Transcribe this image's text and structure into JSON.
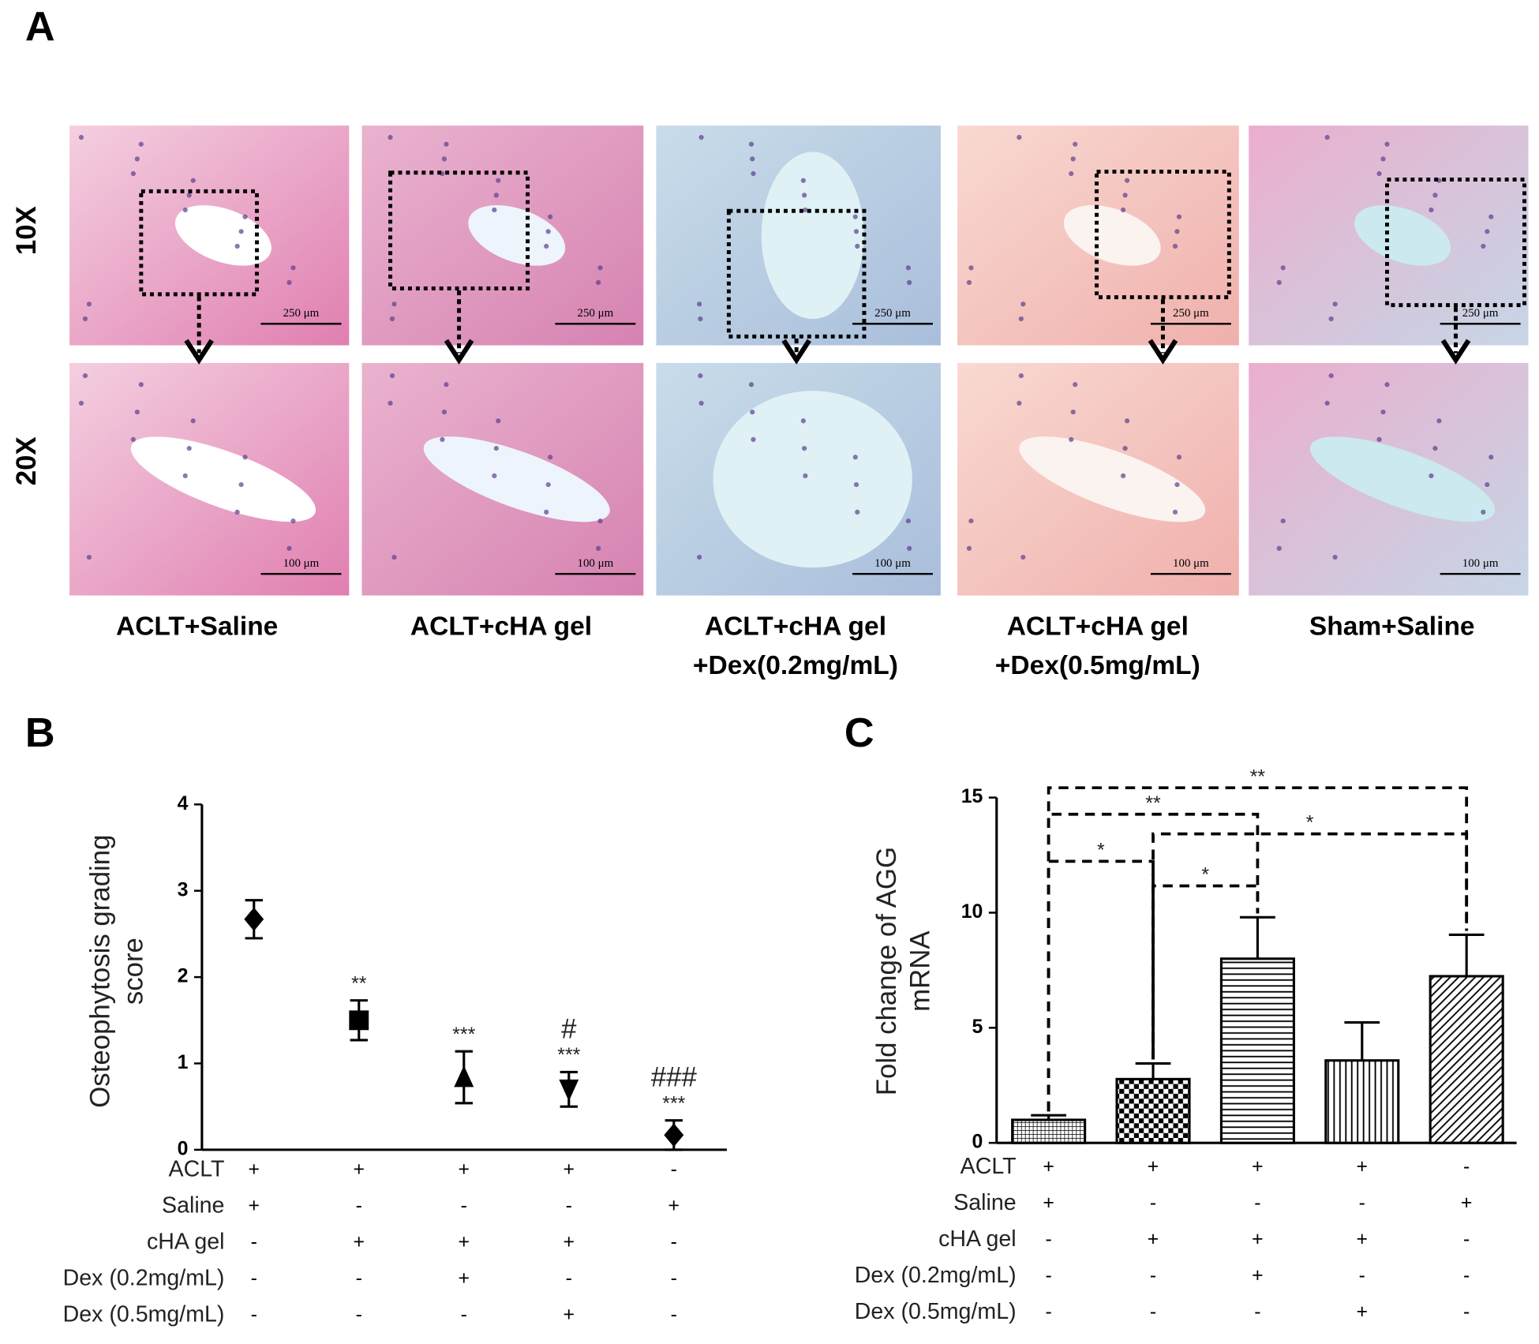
{
  "figure": {
    "panels": [
      "A",
      "B",
      "C"
    ],
    "magnifications": [
      "10X",
      "20X"
    ],
    "scale_bars": [
      "250 μm",
      "100 μm"
    ],
    "groups": [
      [
        "ACLT+Saline"
      ],
      [
        "ACLT+cHA  gel"
      ],
      [
        "ACLT+cHA  gel",
        "+Dex(0.2mg/mL)"
      ],
      [
        "ACLT+cHA  gel",
        "+Dex(0.5mg/mL)"
      ],
      [
        "Sham+Saline"
      ]
    ]
  },
  "chart_data": [
    {
      "type": "errorbar",
      "y_label": [
        "Osteophytosis  grading",
        "score"
      ],
      "categories": [
        null,
        null,
        null,
        null,
        null
      ],
      "values": [
        2.67,
        1.5,
        0.84,
        0.7,
        0.17
      ],
      "errors": [
        0.22,
        0.23,
        0.3,
        0.2,
        0.17
      ],
      "markers": [
        "diamond",
        "square",
        "triangle-up",
        "triangle-down",
        "diamond"
      ],
      "annotations": [
        null,
        [
          "**"
        ],
        [
          "***"
        ],
        [
          "#",
          "***"
        ],
        [
          "###",
          "***"
        ]
      ],
      "color": "#000000",
      "ylim": [
        0,
        4
      ],
      "yticks": [
        0,
        1,
        2,
        3,
        4
      ],
      "conditions": [
        {
          "label": "ACLT",
          "marks": [
            "+",
            "+",
            "+",
            "+",
            "-"
          ]
        },
        {
          "label": "Saline",
          "marks": [
            "+",
            "-",
            "-",
            "-",
            "+"
          ]
        },
        {
          "label": "cHA gel",
          "marks": [
            "-",
            "+",
            "+",
            "+",
            "-"
          ]
        },
        {
          "label": "Dex (0.2mg/mL)",
          "marks": [
            "-",
            "-",
            "+",
            "-",
            "-"
          ]
        },
        {
          "label": "Dex (0.5mg/mL)",
          "marks": [
            "-",
            "-",
            "-",
            "+",
            "-"
          ]
        }
      ]
    },
    {
      "type": "bar",
      "y_label": [
        "Fold change of AGG",
        "mRNA"
      ],
      "categories": [
        null,
        null,
        null,
        null,
        null
      ],
      "values": [
        1.0,
        2.77,
        8.0,
        3.58,
        7.24
      ],
      "errors": [
        0.2,
        0.68,
        1.8,
        1.65,
        1.8
      ],
      "patterns": [
        "fine-cross",
        "checker",
        "horizontal",
        "vertical",
        "diagonal"
      ],
      "color": "#000000",
      "ylim": [
        0,
        15
      ],
      "yticks": [
        0,
        5,
        10,
        15
      ],
      "comparisons": [
        {
          "groups": [
            0,
            4
          ],
          "label": "**"
        },
        {
          "groups": [
            0,
            2
          ],
          "label": "**"
        },
        {
          "groups": [
            1,
            4
          ],
          "label": "*"
        },
        {
          "groups": [
            0,
            1
          ],
          "label": "*"
        },
        {
          "groups": [
            1,
            2
          ],
          "label": "*"
        }
      ],
      "conditions": [
        {
          "label": "ACLT",
          "marks": [
            "+",
            "+",
            "+",
            "+",
            "-"
          ]
        },
        {
          "label": "Saline",
          "marks": [
            "+",
            "-",
            "-",
            "-",
            "+"
          ]
        },
        {
          "label": "cHA gel",
          "marks": [
            "-",
            "+",
            "+",
            "+",
            "-"
          ]
        },
        {
          "label": "Dex (0.2mg/mL)",
          "marks": [
            "-",
            "-",
            "+",
            "-",
            "-"
          ]
        },
        {
          "label": "Dex (0.5mg/mL)",
          "marks": [
            "-",
            "-",
            "-",
            "+",
            "-"
          ]
        }
      ]
    }
  ]
}
